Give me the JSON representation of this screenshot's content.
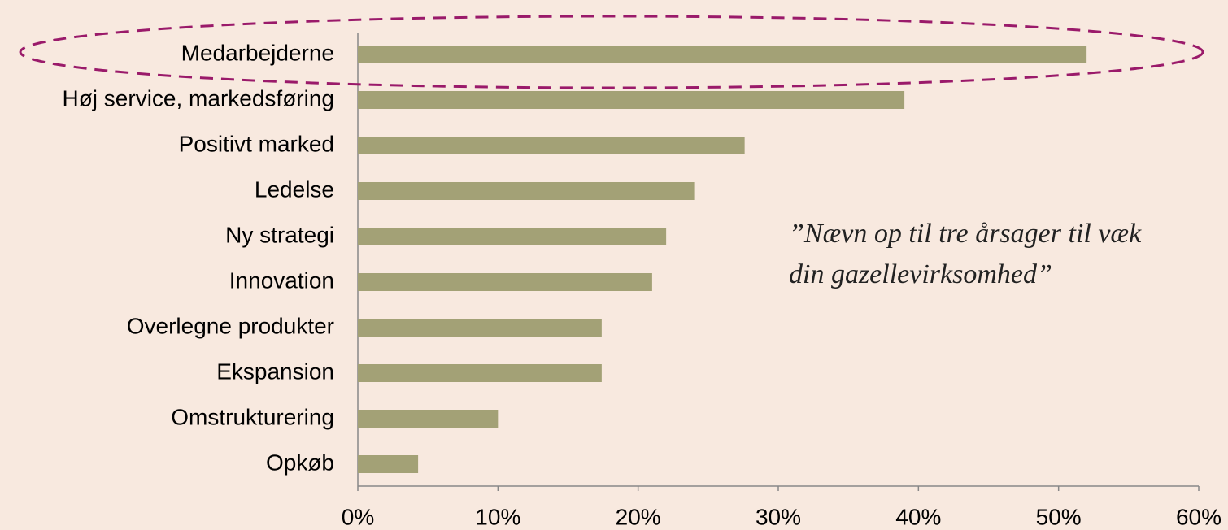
{
  "chart_data": {
    "type": "bar",
    "orientation": "horizontal",
    "categories": [
      "Medarbejderne",
      "Høj service, markedsføring",
      "Positivt marked",
      "Ledelse",
      "Ny strategi",
      "Innovation",
      "Overlegne produkter",
      "Ekspansion",
      "Omstrukturering",
      "Opkøb"
    ],
    "values": [
      52,
      39,
      27.6,
      24,
      22,
      21,
      17.4,
      17.4,
      10,
      4.3
    ],
    "color": "#a3a176",
    "xlim": [
      0,
      60
    ],
    "xticks": [
      {
        "value": 0,
        "label": "0%"
      },
      {
        "value": 10,
        "label": "10%"
      },
      {
        "value": 20,
        "label": "20%"
      },
      {
        "value": 30,
        "label": "30%"
      },
      {
        "value": 40,
        "label": "40%"
      },
      {
        "value": 50,
        "label": "50%"
      },
      {
        "value": 60,
        "label": "60%"
      }
    ],
    "annotations": [
      "”Nævn op til tre årsager til væk",
      "din gazellevirksomhed”"
    ]
  }
}
